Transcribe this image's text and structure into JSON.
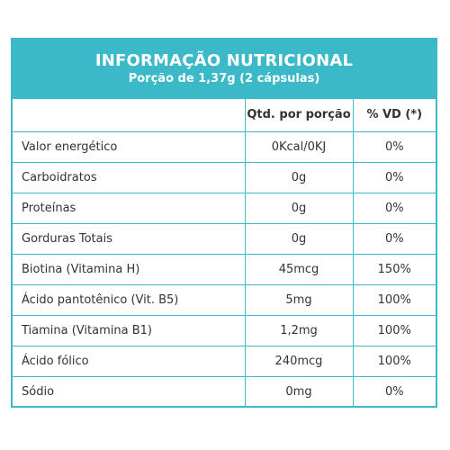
{
  "header": {
    "title": "INFORMAÇÃO NUTRICIONAL",
    "subtitle": "Porção de 1,37g (2 cápsulas)"
  },
  "columns": {
    "nutrient": "",
    "amount": "Qtd. por porção",
    "dv": "% VD (*)"
  },
  "rows": [
    {
      "name": "Valor energético",
      "amount": "0Kcal/0KJ",
      "dv": "0%"
    },
    {
      "name": "Carboidratos",
      "amount": "0g",
      "dv": "0%"
    },
    {
      "name": "Proteínas",
      "amount": "0g",
      "dv": "0%"
    },
    {
      "name": "Gorduras Totais",
      "amount": "0g",
      "dv": "0%"
    },
    {
      "name": "Biotina (Vitamina H)",
      "amount": "45mcg",
      "dv": "150%"
    },
    {
      "name": "Ácido pantotênico (Vit. B5)",
      "amount": "5mg",
      "dv": "100%"
    },
    {
      "name": "Tiamina (Vitamina B1)",
      "amount": "1,2mg",
      "dv": "100%"
    },
    {
      "name": "Ácido fólico",
      "amount": "240mcg",
      "dv": "100%"
    },
    {
      "name": "Sódio",
      "amount": "0mg",
      "dv": "0%"
    }
  ],
  "colors": {
    "accent": "#3bb9c8",
    "header_text": "#ffffff",
    "body_text": "#333333"
  }
}
